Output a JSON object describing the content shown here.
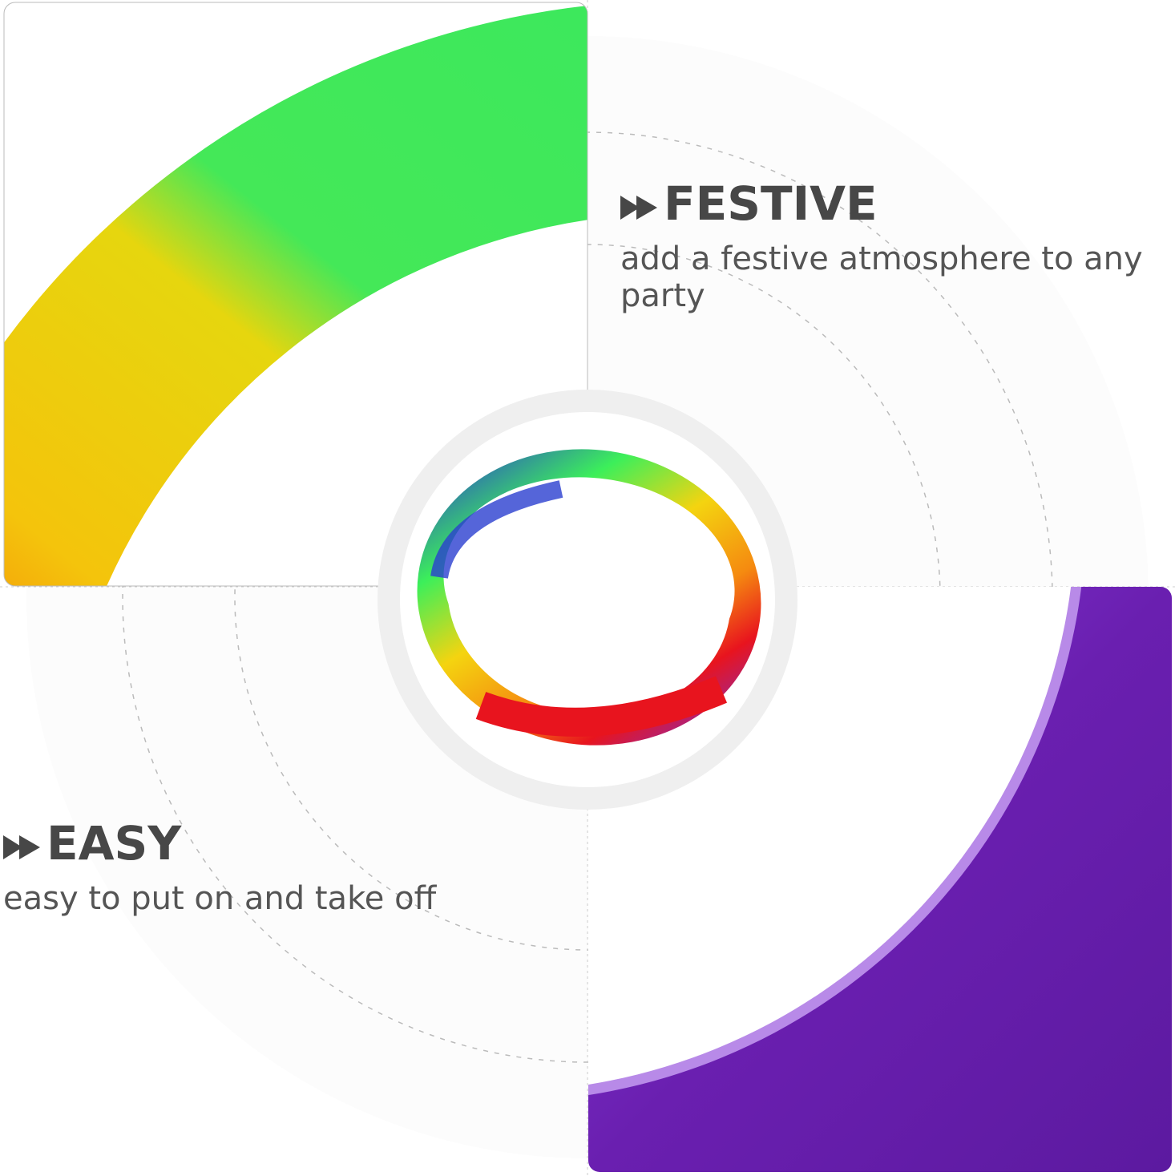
{
  "features": [
    {
      "icon": "fast-forward-icon",
      "title": "FESTIVE",
      "description": "add a festive atmosphere to any party"
    },
    {
      "icon": "fast-forward-icon",
      "title": "EASY",
      "description": "easy to put on and take off"
    }
  ],
  "colors": {
    "text": "#474747",
    "band_yellow": "#f2d20a",
    "band_green": "#3fe85a",
    "band_orange": "#f59a0a",
    "band_purple": "#6a1fb0",
    "bracelet_red": "#e8141e",
    "bracelet_blue": "#2a3fd0"
  }
}
